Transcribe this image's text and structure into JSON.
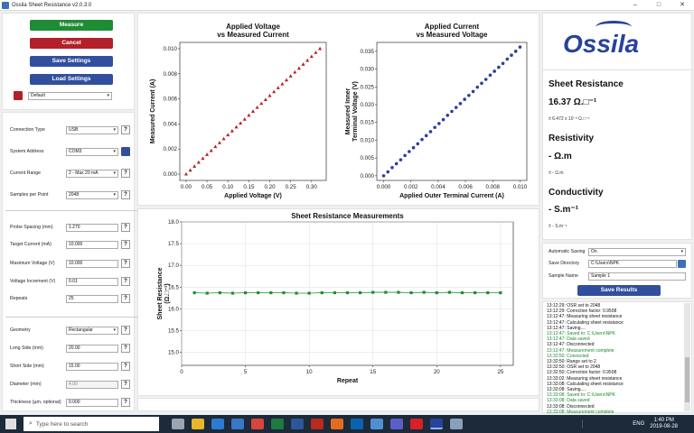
{
  "window": {
    "title": "Ossila Sheet Resistance v2.0.3.0",
    "min": "–",
    "max": "□",
    "close": "✕"
  },
  "left": {
    "buttons": {
      "measure": "Measure",
      "cancel": "Cancel",
      "save_settings": "Save Settings",
      "load_settings": "Load Settings"
    },
    "profile": "Default",
    "connection": [
      {
        "label": "Connection Type",
        "value": "USB"
      },
      {
        "label": "System Address",
        "value": "COM3"
      },
      {
        "label": "Current Range",
        "value": "2 - Max 20 mA"
      },
      {
        "label": "Samples per Point",
        "value": "2048"
      }
    ],
    "measurement": [
      {
        "label": "Probe Spacing (mm)",
        "value": "1.270"
      },
      {
        "label": "Target Current (mA)",
        "value": "10.000"
      },
      {
        "label": "Maximum Voltage (V)",
        "value": "10.000"
      },
      {
        "label": "Voltage Increment (V)",
        "value": "0.01"
      },
      {
        "label": "Repeats",
        "value": "25"
      }
    ],
    "geometry": [
      {
        "label": "Geometry",
        "value": "Rectangular"
      },
      {
        "label": "Long Side (mm)",
        "value": "20.00"
      },
      {
        "label": "Short Side (mm)",
        "value": "15.00"
      },
      {
        "label": "Diameter (mm)",
        "value": "4.00"
      },
      {
        "label": "Thickness (µm, optional)",
        "value": "0.000"
      }
    ],
    "help": "?"
  },
  "chart_data": [
    {
      "type": "scatter",
      "title": "Applied Voltage",
      "subtitle": "vs Measured Current",
      "xlabel": "Applied Voltage (V)",
      "ylabel": "Measured Current (A)",
      "xlim": [
        -0.015,
        0.335
      ],
      "ylim": [
        -0.0005,
        0.0105
      ],
      "xticks": [
        "0.00",
        "0.05",
        "0.10",
        "0.15",
        "0.20",
        "0.25",
        "0.30"
      ],
      "yticks": [
        "0.000",
        "0.002",
        "0.004",
        "0.006",
        "0.008",
        "0.010"
      ],
      "series": [
        {
          "color": "#b3202a",
          "x": [
            0,
            0.01,
            0.02,
            0.03,
            0.04,
            0.05,
            0.06,
            0.07,
            0.08,
            0.09,
            0.1,
            0.11,
            0.12,
            0.13,
            0.14,
            0.15,
            0.16,
            0.17,
            0.18,
            0.19,
            0.2,
            0.21,
            0.22,
            0.23,
            0.24,
            0.25,
            0.26,
            0.27,
            0.28,
            0.29,
            0.3,
            0.31,
            0.32
          ],
          "y": [
            0,
            0.0003125,
            0.000625,
            0.0009375,
            0.00125,
            0.0015625,
            0.001875,
            0.0021875,
            0.0025,
            0.0028125,
            0.003125,
            0.0034375,
            0.00375,
            0.0040625,
            0.004375,
            0.0046875,
            0.005,
            0.0053125,
            0.005625,
            0.0059375,
            0.00625,
            0.0065625,
            0.006875,
            0.0071875,
            0.0075,
            0.0078125,
            0.008125,
            0.0084375,
            0.00875,
            0.0090625,
            0.009375,
            0.0096875,
            0.01
          ]
        }
      ]
    },
    {
      "type": "scatter",
      "title": "Applied Current",
      "subtitle": "vs Measured Voltage",
      "xlabel": "Applied Outer Terminal Current (A)",
      "ylabel": "Measured Inner Terminal Voltage (V)",
      "xlim": [
        -0.0005,
        0.0105
      ],
      "ylim": [
        -0.0013,
        0.0375
      ],
      "xticks": [
        "0.000",
        "0.002",
        "0.004",
        "0.006",
        "0.008",
        "0.010"
      ],
      "yticks": [
        "0.000",
        "0.005",
        "0.010",
        "0.015",
        "0.020",
        "0.025",
        "0.030",
        "0.035"
      ],
      "series": [
        {
          "color": "#2f3f94",
          "x": [
            0,
            0.0003125,
            0.000625,
            0.0009375,
            0.00125,
            0.0015625,
            0.001875,
            0.0021875,
            0.0025,
            0.0028125,
            0.003125,
            0.0034375,
            0.00375,
            0.0040625,
            0.004375,
            0.0046875,
            0.005,
            0.0053125,
            0.005625,
            0.0059375,
            0.00625,
            0.0065625,
            0.006875,
            0.0071875,
            0.0075,
            0.0078125,
            0.008125,
            0.0084375,
            0.00875,
            0.0090625,
            0.009375,
            0.0096875,
            0.01
          ],
          "y": [
            0,
            0.0011,
            0.0023,
            0.0034,
            0.0045,
            0.0057,
            0.0068,
            0.0079,
            0.009,
            0.0102,
            0.0113,
            0.0124,
            0.0136,
            0.0147,
            0.0158,
            0.017,
            0.0181,
            0.0192,
            0.0203,
            0.0215,
            0.0226,
            0.0237,
            0.0249,
            0.026,
            0.0271,
            0.0283,
            0.0294,
            0.0305,
            0.0316,
            0.0328,
            0.0339,
            0.035,
            0.0362
          ]
        }
      ]
    },
    {
      "type": "line",
      "title": "Sheet Resistance Measurements",
      "xlabel": "Repeat",
      "ylabel": "Sheet Resistance (Ω.□⁻¹)",
      "xlim": [
        0,
        26
      ],
      "ylim": [
        14.7,
        18.0
      ],
      "xticks": [
        "0",
        "5",
        "10",
        "15",
        "20",
        "25"
      ],
      "yticks": [
        "15.0",
        "15.5",
        "16.0",
        "16.5",
        "17.0",
        "17.5",
        "18.0"
      ],
      "grid": true,
      "series": [
        {
          "color": "#1f8c35",
          "x": [
            1,
            2,
            3,
            4,
            5,
            6,
            7,
            8,
            9,
            10,
            11,
            12,
            13,
            14,
            15,
            16,
            17,
            18,
            19,
            20,
            21,
            22,
            23,
            24,
            25
          ],
          "y": [
            16.37,
            16.36,
            16.37,
            16.36,
            16.37,
            16.37,
            16.37,
            16.37,
            16.36,
            16.36,
            16.37,
            16.37,
            16.37,
            16.37,
            16.38,
            16.38,
            16.38,
            16.37,
            16.38,
            16.37,
            16.38,
            16.37,
            16.37,
            16.37,
            16.37
          ]
        }
      ]
    }
  ],
  "results": {
    "logo": "Ossila",
    "sheet_title": "Sheet Resistance",
    "sheet_value": "16.37 Ω.□⁻¹",
    "sheet_err": "± 6.472 x 10⁻³ Ω.□⁻¹",
    "resistivity_title": "Resistivity",
    "resistivity_value": "- Ω.m",
    "resistivity_err": "± - Ω.m",
    "conductivity_title": "Conductivity",
    "conductivity_value": "- S.m⁻¹",
    "conductivity_err": "± - S.m⁻¹"
  },
  "saving": {
    "auto_label": "Automatic Saving",
    "auto_value": "On",
    "dir_label": "Save Directory",
    "dir_value": "C:\\Users\\NPK",
    "name_label": "Sample Name",
    "name_value": "Sample 1",
    "save_button": "Save Results"
  },
  "log": [
    {
      "t": "13:12:29: OSR set to 2048",
      "c": ""
    },
    {
      "t": "13:12:29: Correction factor: 0.9508",
      "c": ""
    },
    {
      "t": "13:12:47: Measuring sheet resistance",
      "c": ""
    },
    {
      "t": "13:12:47: Calculating sheet resistance",
      "c": ""
    },
    {
      "t": "13:12:47: Saving....",
      "c": ""
    },
    {
      "t": "13:12:47: Saved to: C:\\Users\\NPK",
      "c": "grn"
    },
    {
      "t": "13:12:47: Data saved",
      "c": "grn"
    },
    {
      "t": "13:12:47: Disconnected",
      "c": ""
    },
    {
      "t": "13:12:47: Measurement complete",
      "c": "grn"
    },
    {
      "t": "13:32:50: Connected",
      "c": "grn"
    },
    {
      "t": "13:32:50: Range set to 2",
      "c": ""
    },
    {
      "t": "13:32:50: OSR set to 2048",
      "c": ""
    },
    {
      "t": "13:32:50: Correction factor: 0.9508",
      "c": ""
    },
    {
      "t": "13:33:02: Measuring sheet resistance",
      "c": ""
    },
    {
      "t": "13:33:08: Calculating sheet resistance",
      "c": ""
    },
    {
      "t": "13:33:08: Saving....",
      "c": ""
    },
    {
      "t": "13:33:08: Saved to: C:\\Users\\NPK",
      "c": "grn"
    },
    {
      "t": "13:33:08: Data saved",
      "c": "grn"
    },
    {
      "t": "13:33:08: Disconnected",
      "c": ""
    },
    {
      "t": "13:33:08: Measurement complete",
      "c": "grn"
    }
  ],
  "taskbar": {
    "search": "Type here to search",
    "time": "1:40 PM",
    "date": "2019-08-28",
    "lang": "ENG"
  }
}
